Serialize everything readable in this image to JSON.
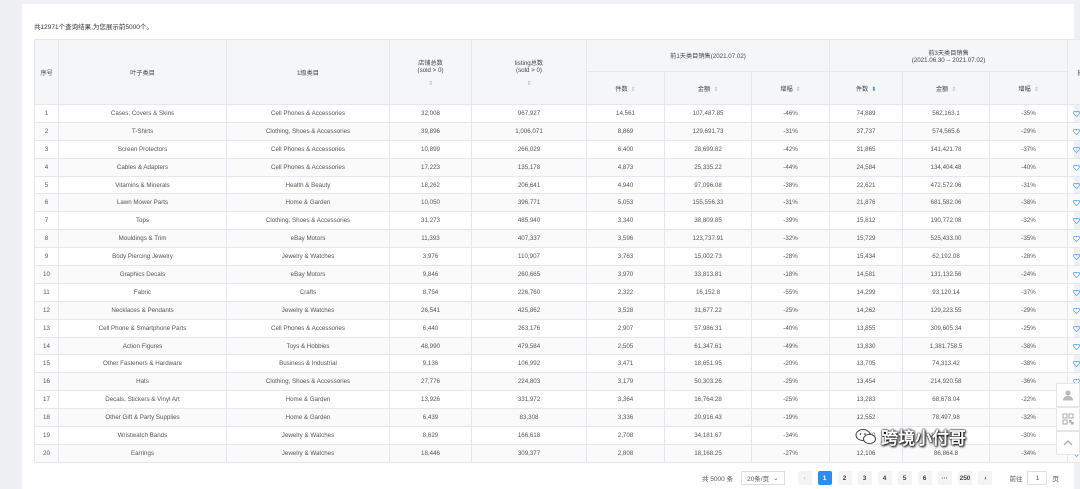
{
  "summary": "共12971个查询结果,为您展示前5000个。",
  "headers": {
    "seq": "序号",
    "leaf": "叶子类目",
    "level1": "1级类目",
    "stores": "店铺总数",
    "stores_sub": "(sold > 0)",
    "listing": "listing总数",
    "listing_sub": "(sold > 0)",
    "day1": "前1天类目销售(2021.07.02)",
    "day3": "前3天类目销售",
    "day3_sub": "(2021.06.30 -- 2021.07.02)",
    "action": "操作",
    "pieces": "件数",
    "amount": "金额",
    "growth": "增幅"
  },
  "sort_icon": "⇕",
  "sort_down_icon": "⬍",
  "follow_label": "关注",
  "accent_color": "#2d8cf0",
  "rows": [
    {
      "no": "1",
      "leaf": "Cases, Covers & Skins",
      "cat": "Cell Phones & Accessories",
      "stores": "32,008",
      "listing": "967,927",
      "d1n": "14,561",
      "d1a": "107,487.85",
      "d1g": "-46%",
      "d3n": "74,889",
      "d3a": "562,163.1",
      "d3g": "-35%"
    },
    {
      "no": "2",
      "leaf": "T-Shirts",
      "cat": "Clothing, Shoes & Accessories",
      "stores": "39,896",
      "listing": "1,006,071",
      "d1n": "8,869",
      "d1a": "129,691.73",
      "d1g": "-31%",
      "d3n": "37,737",
      "d3a": "574,565.6",
      "d3g": "-29%"
    },
    {
      "no": "3",
      "leaf": "Screen Protectors",
      "cat": "Cell Phones & Accessories",
      "stores": "10,899",
      "listing": "266,029",
      "d1n": "6,400",
      "d1a": "28,699.82",
      "d1g": "-42%",
      "d3n": "31,865",
      "d3a": "141,421.78",
      "d3g": "-37%"
    },
    {
      "no": "4",
      "leaf": "Cables & Adapters",
      "cat": "Cell Phones & Accessories",
      "stores": "17,223",
      "listing": "135,178",
      "d1n": "4,873",
      "d1a": "25,335.22",
      "d1g": "-44%",
      "d3n": "24,584",
      "d3a": "134,404.48",
      "d3g": "-40%"
    },
    {
      "no": "5",
      "leaf": "Vitamins & Minerals",
      "cat": "Health & Beauty",
      "stores": "18,262",
      "listing": "206,641",
      "d1n": "4,940",
      "d1a": "97,096.08",
      "d1g": "-38%",
      "d3n": "22,621",
      "d3a": "472,572.06",
      "d3g": "-31%"
    },
    {
      "no": "6",
      "leaf": "Lawn Mower Parts",
      "cat": "Home & Garden",
      "stores": "10,050",
      "listing": "396,771",
      "d1n": "5,053",
      "d1a": "155,556.33",
      "d1g": "-31%",
      "d3n": "21,876",
      "d3a": "681,582.06",
      "d3g": "-38%"
    },
    {
      "no": "7",
      "leaf": "Tops",
      "cat": "Clothing, Shoes & Accessories",
      "stores": "31,273",
      "listing": "485,940",
      "d1n": "3,340",
      "d1a": "38,809.85",
      "d1g": "-39%",
      "d3n": "15,812",
      "d3a": "190,772.08",
      "d3g": "-32%"
    },
    {
      "no": "8",
      "leaf": "Mouldings & Trim",
      "cat": "eBay Motors",
      "stores": "11,393",
      "listing": "407,337",
      "d1n": "3,596",
      "d1a": "123,737.91",
      "d1g": "-32%",
      "d3n": "15,729",
      "d3a": "525,433.00",
      "d3g": "-35%"
    },
    {
      "no": "9",
      "leaf": "Body Piercing Jewelry",
      "cat": "Jewelry & Watches",
      "stores": "3,976",
      "listing": "110,907",
      "d1n": "3,763",
      "d1a": "15,002.73",
      "d1g": "-28%",
      "d3n": "15,434",
      "d3a": "62,192.08",
      "d3g": "-28%"
    },
    {
      "no": "10",
      "leaf": "Graphics Decals",
      "cat": "eBay Motors",
      "stores": "9,846",
      "listing": "260,665",
      "d1n": "3,970",
      "d1a": "33,813.81",
      "d1g": "-18%",
      "d3n": "14,581",
      "d3a": "131,132.56",
      "d3g": "-24%"
    },
    {
      "no": "11",
      "leaf": "Fabric",
      "cat": "Crafts",
      "stores": "8,754",
      "listing": "226,760",
      "d1n": "2,322",
      "d1a": "16,152.8",
      "d1g": "-55%",
      "d3n": "14,299",
      "d3a": "93,120.14",
      "d3g": "-37%"
    },
    {
      "no": "12",
      "leaf": "Necklaces & Pendants",
      "cat": "Jewelry & Watches",
      "stores": "26,541",
      "listing": "425,862",
      "d1n": "3,528",
      "d1a": "31,677.22",
      "d1g": "-25%",
      "d3n": "14,262",
      "d3a": "129,223.55",
      "d3g": "-29%"
    },
    {
      "no": "13",
      "leaf": "Cell Phone & Smartphone Parts",
      "cat": "Cell Phones & Accessories",
      "stores": "6,440",
      "listing": "263,176",
      "d1n": "2,907",
      "d1a": "57,986.31",
      "d1g": "-40%",
      "d3n": "13,855",
      "d3a": "309,605.34",
      "d3g": "-25%"
    },
    {
      "no": "14",
      "leaf": "Action Figures",
      "cat": "Toys & Hobbies",
      "stores": "48,990",
      "listing": "479,584",
      "d1n": "2,505",
      "d1a": "61,347.61",
      "d1g": "-49%",
      "d3n": "13,830",
      "d3a": "1,381,758.5",
      "d3g": "-38%"
    },
    {
      "no": "15",
      "leaf": "Other Fasteners & Hardware",
      "cat": "Business & Industrial",
      "stores": "9,136",
      "listing": "106,992",
      "d1n": "3,471",
      "d1a": "18,651.95",
      "d1g": "-20%",
      "d3n": "13,705",
      "d3a": "74,313.42",
      "d3g": "-38%"
    },
    {
      "no": "16",
      "leaf": "Hats",
      "cat": "Clothing, Shoes & Accessories",
      "stores": "27,776",
      "listing": "224,803",
      "d1n": "3,179",
      "d1a": "50,303.26",
      "d1g": "-25%",
      "d3n": "13,454",
      "d3a": "214,920.58",
      "d3g": "-36%"
    },
    {
      "no": "17",
      "leaf": "Decals, Stickers & Vinyl Art",
      "cat": "Home & Garden",
      "stores": "13,926",
      "listing": "331,972",
      "d1n": "3,364",
      "d1a": "16,764.28",
      "d1g": "-25%",
      "d3n": "13,283",
      "d3a": "68,678.04",
      "d3g": "-22%"
    },
    {
      "no": "18",
      "leaf": "Other Gift & Party Supplies",
      "cat": "Home & Garden",
      "stores": "6,439",
      "listing": "83,308",
      "d1n": "3,336",
      "d1a": "20,916.43",
      "d1g": "-19%",
      "d3n": "12,552",
      "d3a": "78,497.98",
      "d3g": "-32%"
    },
    {
      "no": "19",
      "leaf": "Wristwatch Bands",
      "cat": "Jewelry & Watches",
      "stores": "8,629",
      "listing": "166,618",
      "d1n": "2,708",
      "d1a": "34,181.67",
      "d1g": "-34%",
      "d3n": "12,240",
      "d3a": "145,306.92",
      "d3g": "-30%"
    },
    {
      "no": "20",
      "leaf": "Earrings",
      "cat": "Jewelry & Watches",
      "stores": "18,446",
      "listing": "309,377",
      "d1n": "2,808",
      "d1a": "18,168.25",
      "d1g": "-27%",
      "d3n": "12,106",
      "d3a": "86,864.8",
      "d3g": "-34%"
    }
  ],
  "pagination": {
    "total": "共 5000 条",
    "page_size": "20条/页",
    "page_size_caret": "⌄",
    "prev_icon": "‹",
    "next_icon": "›",
    "pages": [
      "1",
      "2",
      "3",
      "4",
      "5",
      "6",
      "···",
      "250"
    ],
    "active": "1",
    "goto_label": "前往",
    "goto_value": "1",
    "page_unit": "页"
  },
  "watermark": "跨境小付哥"
}
